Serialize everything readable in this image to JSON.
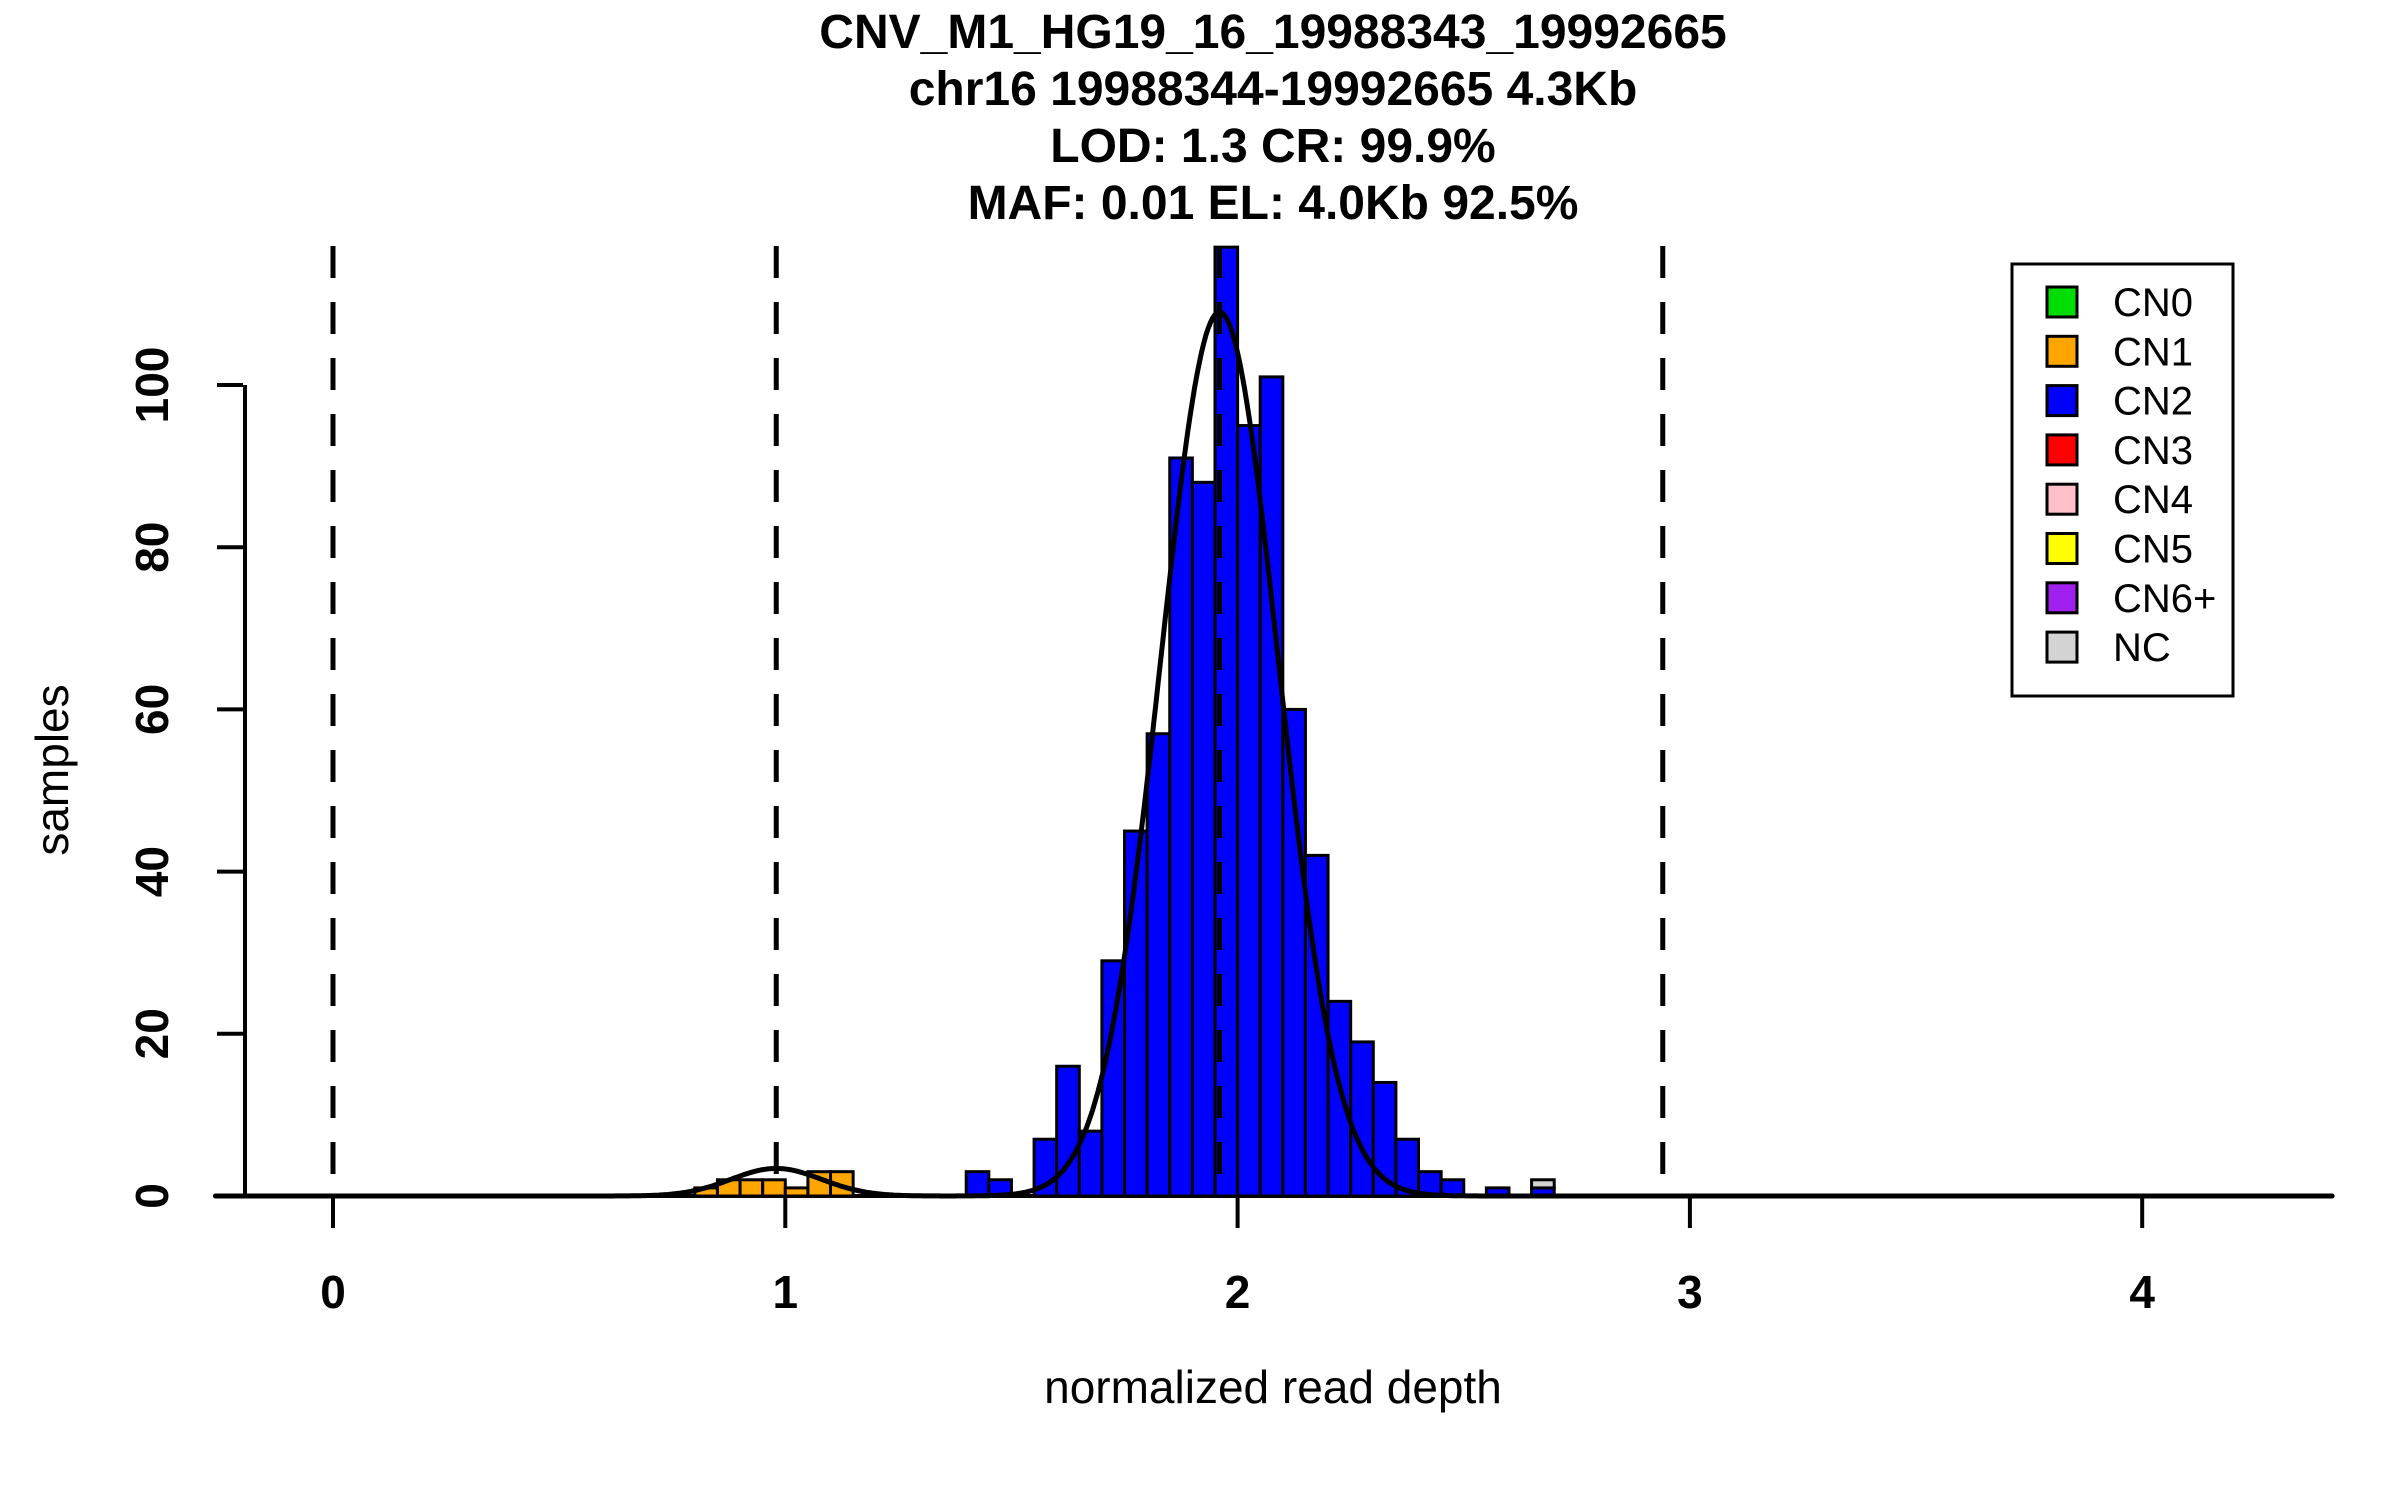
{
  "chart_data": {
    "type": "bar",
    "title_lines": [
      "CNV_M1_HG19_16_19988343_19992665",
      "chr16 19988344-19992665 4.3Kb",
      "LOD: 1.3 CR: 99.9%",
      "MAF: 0.01 EL: 4.0Kb 92.5%"
    ],
    "xlabel": "normalized read depth",
    "ylabel": "samples",
    "x_ticks": [
      0,
      1,
      2,
      3,
      4
    ],
    "y_ticks": [
      0,
      20,
      40,
      60,
      80,
      100
    ],
    "xlim": [
      -0.26,
      4.42
    ],
    "ylim": [
      0,
      117
    ],
    "grid": "off",
    "legend_position": "top-right",
    "bin_width": 0.05,
    "bars": [
      {
        "x": 0.8,
        "count": 1,
        "cn": "CN1"
      },
      {
        "x": 0.85,
        "count": 2,
        "cn": "CN1"
      },
      {
        "x": 0.9,
        "count": 2,
        "cn": "CN1"
      },
      {
        "x": 0.95,
        "count": 2,
        "cn": "CN1"
      },
      {
        "x": 1.0,
        "count": 1,
        "cn": "CN1"
      },
      {
        "x": 1.05,
        "count": 3,
        "cn": "CN1"
      },
      {
        "x": 1.1,
        "count": 3,
        "cn": "CN1"
      },
      {
        "x": 1.4,
        "count": 3,
        "cn": "CN2"
      },
      {
        "x": 1.45,
        "count": 2,
        "cn": "CN2"
      },
      {
        "x": 1.55,
        "count": 7,
        "cn": "CN2"
      },
      {
        "x": 1.6,
        "count": 16,
        "cn": "CN2"
      },
      {
        "x": 1.65,
        "count": 8,
        "cn": "CN2"
      },
      {
        "x": 1.7,
        "count": 29,
        "cn": "CN2"
      },
      {
        "x": 1.75,
        "count": 45,
        "cn": "CN2"
      },
      {
        "x": 1.8,
        "count": 57,
        "cn": "CN2"
      },
      {
        "x": 1.85,
        "count": 91,
        "cn": "CN2"
      },
      {
        "x": 1.9,
        "count": 88,
        "cn": "CN2"
      },
      {
        "x": 1.95,
        "count": 117,
        "cn": "CN2"
      },
      {
        "x": 2.0,
        "count": 95,
        "cn": "CN2"
      },
      {
        "x": 2.05,
        "count": 101,
        "cn": "CN2"
      },
      {
        "x": 2.1,
        "count": 60,
        "cn": "CN2"
      },
      {
        "x": 2.15,
        "count": 42,
        "cn": "CN2"
      },
      {
        "x": 2.2,
        "count": 24,
        "cn": "CN2"
      },
      {
        "x": 2.25,
        "count": 19,
        "cn": "CN2"
      },
      {
        "x": 2.3,
        "count": 14,
        "cn": "CN2"
      },
      {
        "x": 2.35,
        "count": 7,
        "cn": "CN2"
      },
      {
        "x": 2.4,
        "count": 3,
        "cn": "CN2"
      },
      {
        "x": 2.45,
        "count": 2,
        "cn": "CN2"
      },
      {
        "x": 2.55,
        "count": 1,
        "cn": "CN2"
      },
      {
        "x": 2.65,
        "count": 1,
        "cn": "CN2",
        "stack": [
          {
            "cn": "NC",
            "count": 1
          }
        ]
      }
    ],
    "dashed_lines_x": [
      0.0,
      0.98,
      1.96,
      2.94
    ],
    "density_curve": {
      "color": "#000000",
      "components": [
        {
          "mu": 0.98,
          "sigma": 0.1,
          "amp": 3.4
        },
        {
          "mu": 1.96,
          "sigma": 0.13,
          "amp": 109
        }
      ]
    },
    "legend": {
      "entries": [
        {
          "label": "CN0",
          "color": "#00DD00"
        },
        {
          "label": "CN1",
          "color": "#FFA500"
        },
        {
          "label": "CN2",
          "color": "#0000FF"
        },
        {
          "label": "CN3",
          "color": "#FF0000"
        },
        {
          "label": "CN4",
          "color": "#FFC0CB"
        },
        {
          "label": "CN5",
          "color": "#FFFF00"
        },
        {
          "label": "CN6+",
          "color": "#A020F0"
        },
        {
          "label": "NC",
          "color": "#D3D3D3"
        }
      ]
    },
    "colors": {
      "CN0": "#00DD00",
      "CN1": "#FFA500",
      "CN2": "#0000FF",
      "CN3": "#FF0000",
      "CN4": "#FFC0CB",
      "CN5": "#FFFF00",
      "CN6+": "#A020F0",
      "NC": "#D3D3D3",
      "axis": "#000000",
      "background": "#FFFFFF"
    }
  }
}
